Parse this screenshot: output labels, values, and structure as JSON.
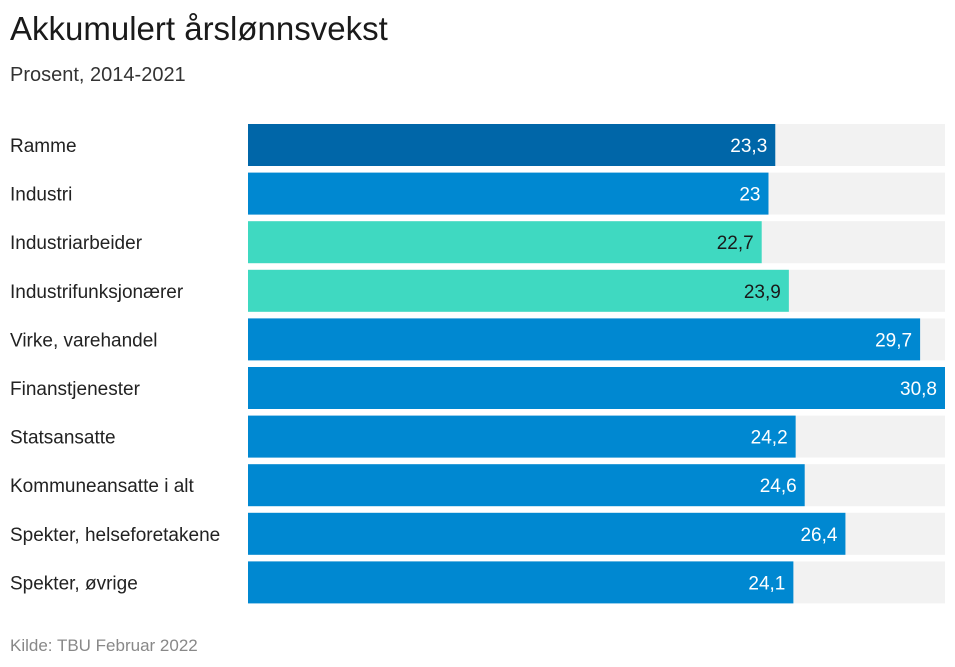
{
  "header": {
    "title": "Akkumulert årslønnsvekst",
    "subtitle": "Prosent, 2014-2021"
  },
  "footer": {
    "source": "Kilde: TBU Februar 2022"
  },
  "chart_data": {
    "type": "bar",
    "orientation": "horizontal",
    "title": "Akkumulert årslønnsvekst",
    "subtitle": "Prosent, 2014-2021",
    "xlim": [
      0,
      30.8
    ],
    "grid": false,
    "categories": [
      "Ramme",
      "Industri",
      "Industriarbeider",
      "Industrifunksjonærer",
      "Virke, varehandel",
      "Finanstjenester",
      "Statsansatte",
      "Kommuneansatte i alt",
      "Spekter, helseforetakene",
      "Spekter, øvrige"
    ],
    "values": [
      23.3,
      23,
      22.7,
      23.9,
      29.7,
      30.8,
      24.2,
      24.6,
      26.4,
      24.1
    ],
    "value_labels": [
      "23,3",
      "23",
      "22,7",
      "23,9",
      "29,7",
      "30,8",
      "24,2",
      "24,6",
      "26,4",
      "24,1"
    ],
    "colors": [
      "#0066a8",
      "#0088d1",
      "#3fd9c1",
      "#3fd9c1",
      "#0088d1",
      "#0088d1",
      "#0088d1",
      "#0088d1",
      "#0088d1",
      "#0088d1"
    ],
    "label_colors": [
      "#ffffff",
      "#ffffff",
      "#1a1a1a",
      "#1a1a1a",
      "#ffffff",
      "#ffffff",
      "#ffffff",
      "#ffffff",
      "#ffffff",
      "#ffffff"
    ],
    "track_color": "#f2f2f2"
  }
}
